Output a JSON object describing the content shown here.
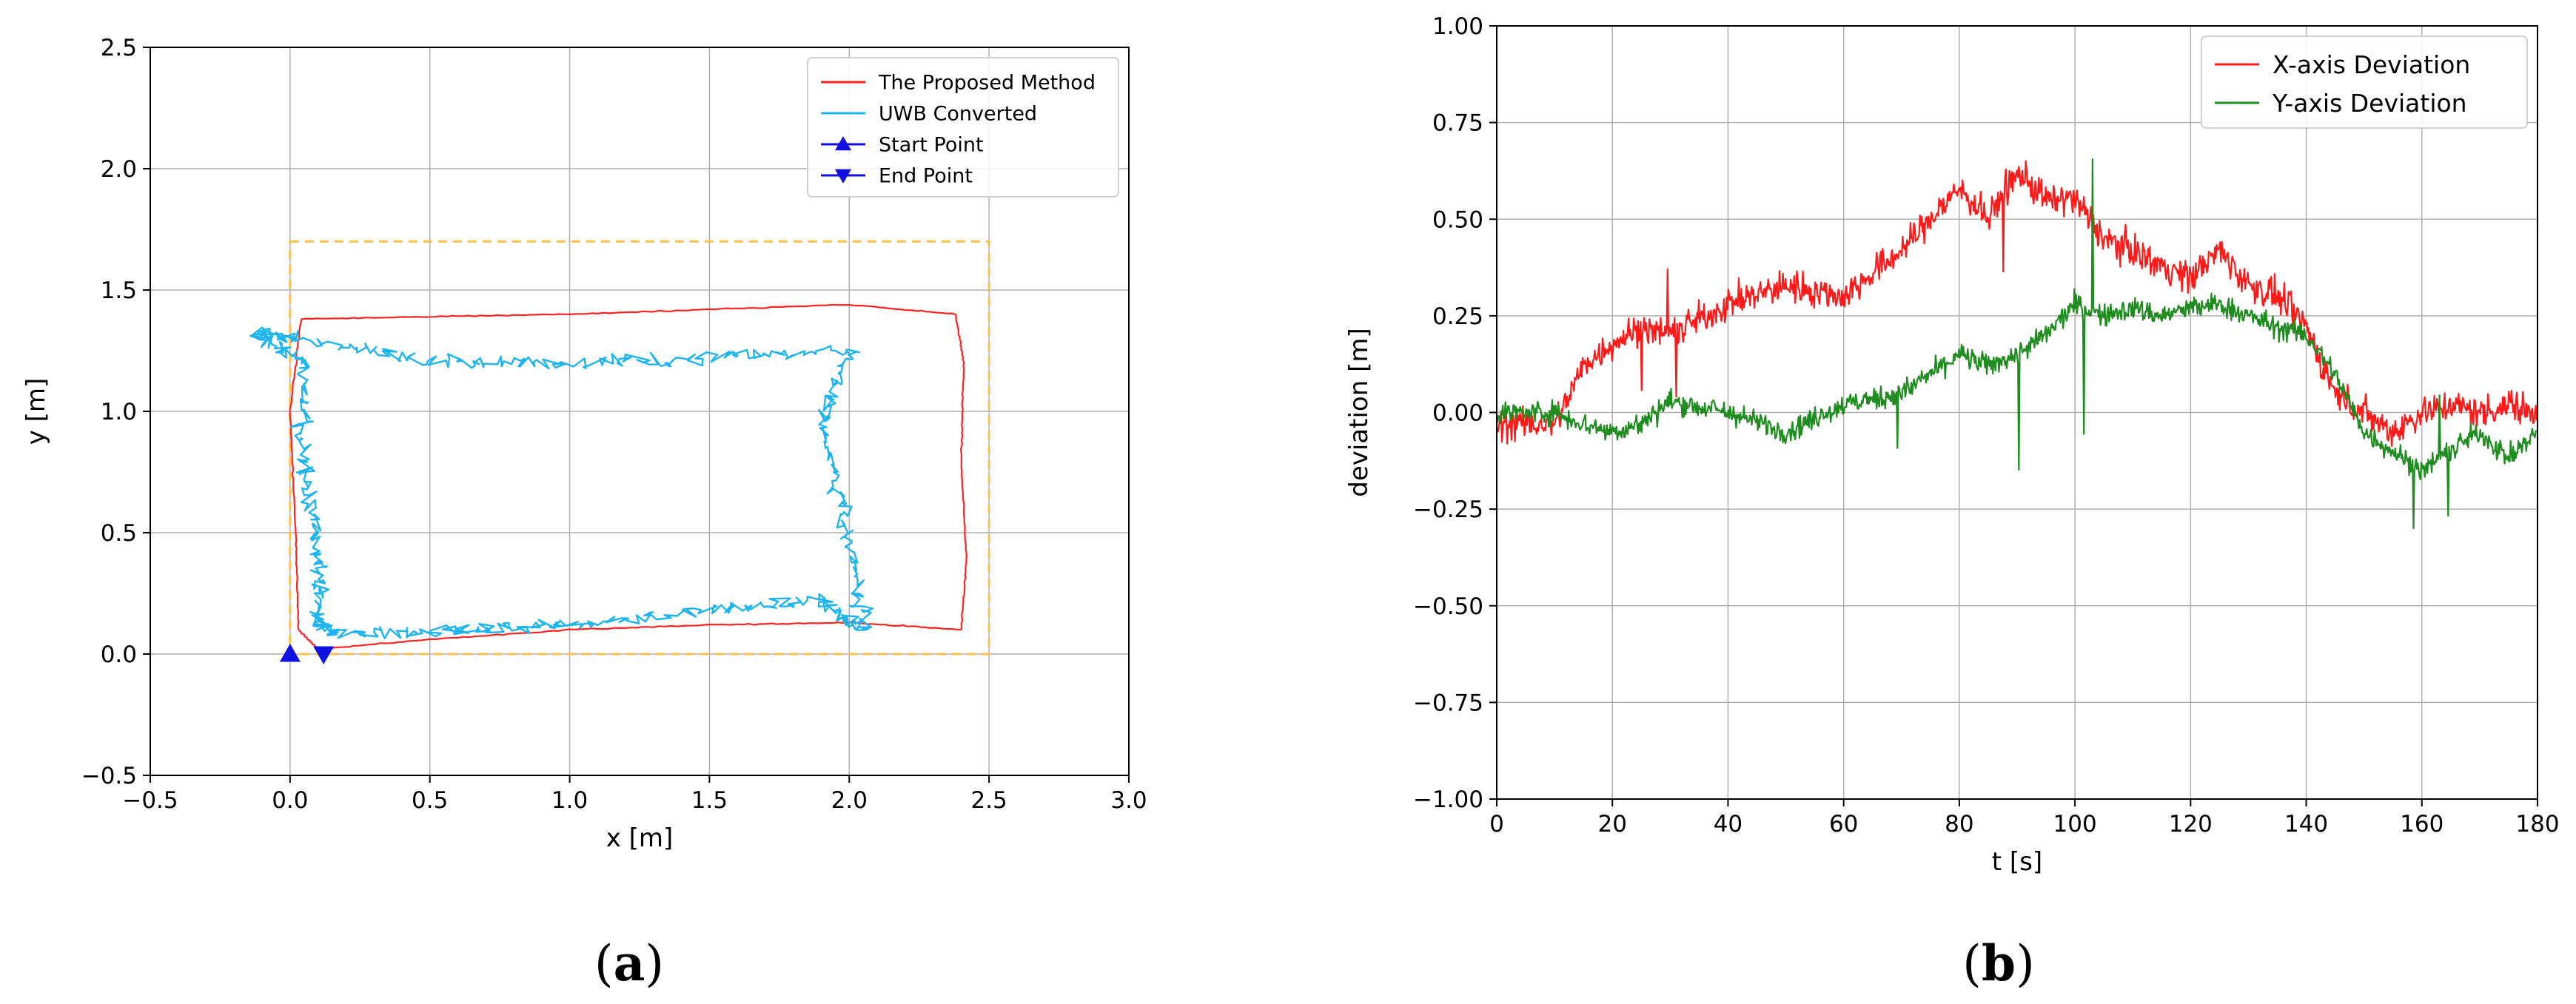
{
  "chart_data": [
    {
      "type": "line",
      "panel_label": "a",
      "xlabel": "x [m]",
      "ylabel": "y [m]",
      "xlim": [
        -0.5,
        3.0
      ],
      "ylim": [
        -0.5,
        2.5
      ],
      "xticks": [
        "−0.5",
        "0.0",
        "0.5",
        "1.0",
        "1.5",
        "2.0",
        "2.5",
        "3.0"
      ],
      "yticks": [
        "−0.5",
        "0.0",
        "0.5",
        "1.0",
        "1.5",
        "2.0",
        "2.5"
      ],
      "grid": true,
      "legend_position": "top-right",
      "series": [
        {
          "name": "The Proposed Method",
          "color": "#ff2222",
          "points": [
            [
              0.1,
              0.02
            ],
            [
              0.5,
              0.06
            ],
            [
              1.0,
              0.1
            ],
            [
              1.5,
              0.12
            ],
            [
              2.0,
              0.13
            ],
            [
              2.4,
              0.1
            ],
            [
              2.42,
              0.4
            ],
            [
              2.4,
              0.8
            ],
            [
              2.41,
              1.2
            ],
            [
              2.38,
              1.4
            ],
            [
              2.0,
              1.44
            ],
            [
              1.5,
              1.42
            ],
            [
              1.0,
              1.4
            ],
            [
              0.5,
              1.39
            ],
            [
              0.04,
              1.38
            ],
            [
              0.0,
              1.0
            ],
            [
              0.02,
              0.5
            ],
            [
              0.03,
              0.1
            ],
            [
              0.1,
              0.02
            ]
          ]
        },
        {
          "name": "UWB Converted",
          "color": "#1eb4f0",
          "points": [
            [
              0.15,
              0.08
            ],
            [
              0.6,
              0.1
            ],
            [
              1.0,
              0.12
            ],
            [
              1.5,
              0.18
            ],
            [
              1.9,
              0.22
            ],
            [
              2.05,
              0.1
            ],
            [
              2.0,
              0.5
            ],
            [
              1.9,
              0.9
            ],
            [
              2.0,
              1.25
            ],
            [
              1.5,
              1.22
            ],
            [
              1.0,
              1.2
            ],
            [
              0.5,
              1.21
            ],
            [
              0.0,
              1.3
            ],
            [
              -0.12,
              1.32
            ],
            [
              0.05,
              1.2
            ],
            [
              0.05,
              0.8
            ],
            [
              0.1,
              0.4
            ],
            [
              0.1,
              0.15
            ],
            [
              0.15,
              0.08
            ]
          ]
        },
        {
          "name": "Start Point",
          "color": "#1010e0",
          "marker": "triangle-up",
          "points": [
            [
              0.0,
              0.0
            ]
          ]
        },
        {
          "name": "End Point",
          "color": "#1010e0",
          "marker": "triangle-down",
          "points": [
            [
              0.12,
              0.0
            ]
          ]
        }
      ],
      "annotations": [
        {
          "type": "dashed-rectangle",
          "color": "#ffc04d",
          "x": [
            0.0,
            2.5
          ],
          "y": [
            0.0,
            1.7
          ]
        }
      ]
    },
    {
      "type": "line",
      "panel_label": "b",
      "xlabel": "t [s]",
      "ylabel": "deviation [m]",
      "xlim": [
        0,
        180
      ],
      "ylim": [
        -1.0,
        1.0
      ],
      "xticks": [
        "0",
        "20",
        "40",
        "60",
        "80",
        "100",
        "120",
        "140",
        "160",
        "180"
      ],
      "yticks": [
        "−1.00",
        "−0.75",
        "−0.50",
        "−0.25",
        "0.00",
        "0.25",
        "0.50",
        "0.75",
        "1.00"
      ],
      "grid": true,
      "legend_position": "top-right",
      "series": [
        {
          "name": "X-axis Deviation",
          "color": "#ff1a1a",
          "x": [
            0,
            10,
            15,
            20,
            25,
            30,
            40,
            50,
            60,
            70,
            75,
            80,
            85,
            90,
            95,
            100,
            105,
            110,
            115,
            120,
            125,
            130,
            135,
            140,
            145,
            150,
            155,
            160,
            165,
            170,
            175,
            180
          ],
          "y": [
            -0.03,
            -0.03,
            0.12,
            0.18,
            0.22,
            0.2,
            0.28,
            0.33,
            0.3,
            0.42,
            0.5,
            0.58,
            0.5,
            0.62,
            0.55,
            0.55,
            0.45,
            0.42,
            0.38,
            0.35,
            0.42,
            0.33,
            0.3,
            0.22,
            0.05,
            0.0,
            -0.05,
            0.0,
            0.02,
            0.0,
            0.02,
            0.0
          ]
        },
        {
          "name": "Y-axis Deviation",
          "color": "#1f8c1f",
          "x": [
            0,
            10,
            15,
            20,
            25,
            30,
            40,
            50,
            60,
            70,
            75,
            80,
            85,
            90,
            95,
            100,
            105,
            110,
            115,
            120,
            125,
            130,
            135,
            140,
            145,
            150,
            155,
            160,
            165,
            170,
            175,
            180
          ],
          "y": [
            0.0,
            0.0,
            -0.03,
            -0.05,
            -0.03,
            0.03,
            0.0,
            -0.05,
            0.02,
            0.05,
            0.1,
            0.15,
            0.12,
            0.15,
            0.2,
            0.28,
            0.25,
            0.27,
            0.25,
            0.27,
            0.28,
            0.25,
            0.22,
            0.2,
            0.1,
            -0.05,
            -0.1,
            -0.15,
            -0.1,
            -0.05,
            -0.12,
            -0.05
          ]
        }
      ]
    }
  ]
}
